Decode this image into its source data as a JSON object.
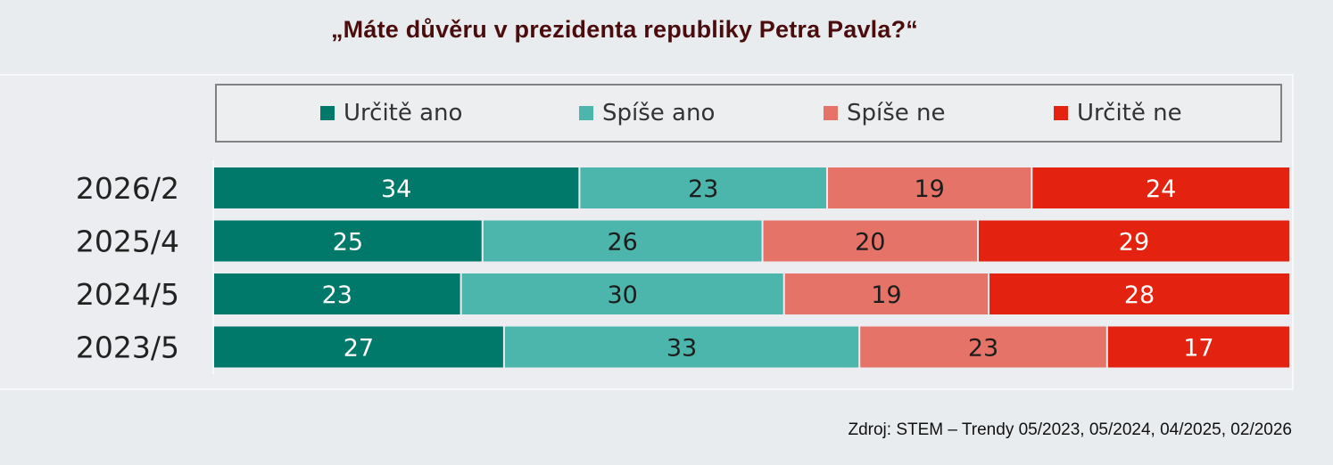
{
  "title": "„Máte důvěru v prezidenta republiky Petra Pavla?“",
  "source": "Zdroj: STEM – Trendy 05/2023, 05/2024, 04/2025, 02/2026",
  "colors": {
    "urcite_ano": "#00796b",
    "spise_ano": "#4db6ac",
    "spise_ne": "#e57368",
    "urcite_ne": "#e3230f"
  },
  "chart_data": {
    "type": "bar",
    "orientation": "horizontal",
    "stacked": true,
    "legend_position": "top",
    "categories": [
      "2026/2",
      "2025/4",
      "2024/5",
      "2023/5"
    ],
    "series": [
      {
        "name": "Určitě ano",
        "color": "#00796b",
        "values": [
          34,
          25,
          23,
          27
        ]
      },
      {
        "name": "Spíše ano",
        "color": "#4db6ac",
        "values": [
          23,
          26,
          30,
          33
        ]
      },
      {
        "name": "Spíše ne",
        "color": "#e57368",
        "values": [
          19,
          20,
          19,
          23
        ]
      },
      {
        "name": "Určitě ne",
        "color": "#e3230f",
        "values": [
          24,
          29,
          28,
          17
        ]
      }
    ]
  }
}
